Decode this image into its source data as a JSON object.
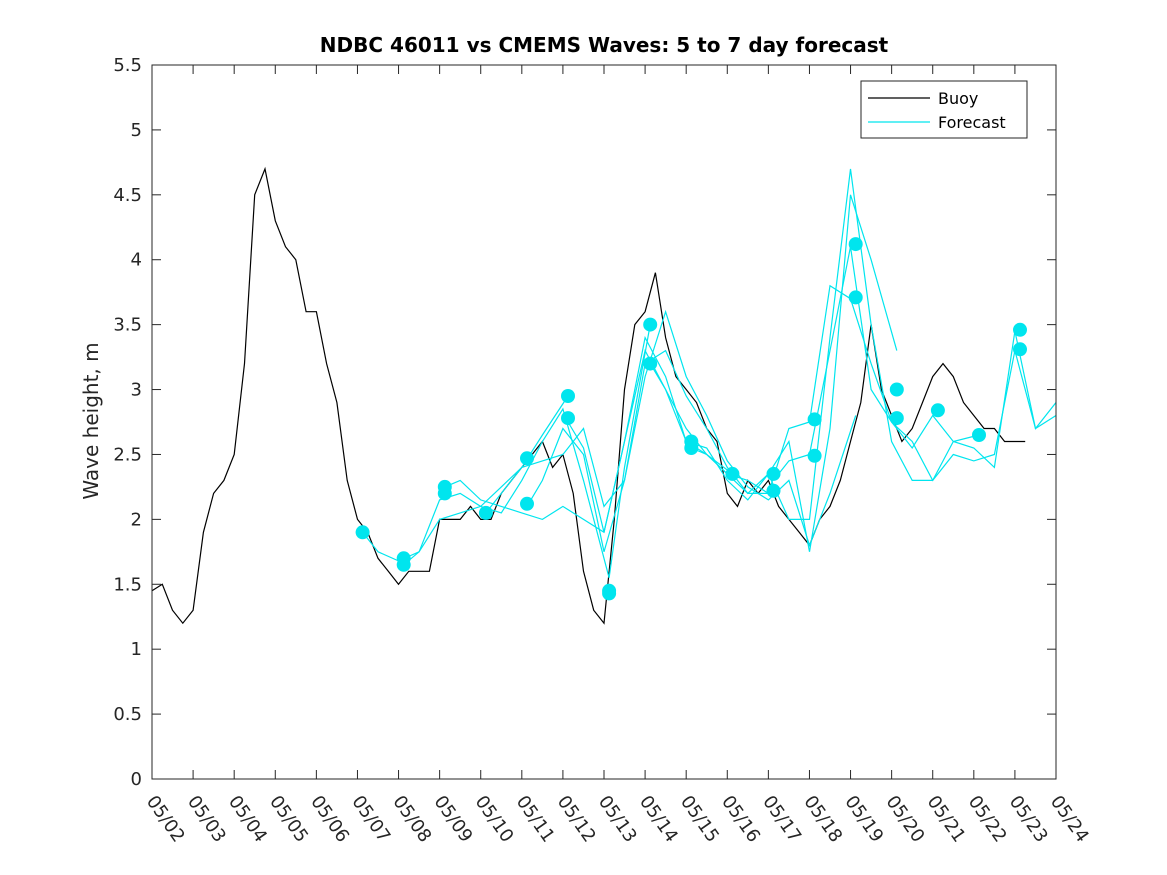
{
  "chart_data": {
    "type": "line",
    "title": "NDBC 46011 vs CMEMS Waves: 5 to 7 day forecast",
    "xlabel": "",
    "ylabel": "Wave height, m",
    "ylim": [
      0,
      5.5
    ],
    "yticks": [
      0,
      0.5,
      1,
      1.5,
      2,
      2.5,
      3,
      3.5,
      4,
      4.5,
      5,
      5.5
    ],
    "ytick_labels": [
      "0",
      "0.5",
      "1",
      "1.5",
      "2",
      "2.5",
      "3",
      "3.5",
      "4",
      "4.5",
      "5",
      "5.5"
    ],
    "xlim": [
      "05/02",
      "05/24"
    ],
    "xtick_labels": [
      "05/02",
      "05/03",
      "05/04",
      "05/05",
      "05/06",
      "05/07",
      "05/08",
      "05/09",
      "05/10",
      "05/11",
      "05/12",
      "05/13",
      "05/14",
      "05/15",
      "05/16",
      "05/17",
      "05/18",
      "05/19",
      "05/20",
      "05/21",
      "05/22",
      "05/23",
      "05/24"
    ],
    "grid": false,
    "legend": {
      "placement": "top-right",
      "entries": [
        "Buoy",
        "Forecast"
      ]
    },
    "colors": {
      "buoy": "#000000",
      "forecast": "#00E5EE",
      "axis": "#262626"
    },
    "series": [
      {
        "name": "Buoy",
        "x": [
          "05/02",
          "05/02 06h",
          "05/02 12h",
          "05/02 18h",
          "05/03",
          "05/03 06h",
          "05/03 12h",
          "05/03 18h",
          "05/04",
          "05/04 06h",
          "05/04 12h",
          "05/04 18h",
          "05/05",
          "05/05 06h",
          "05/05 12h",
          "05/05 18h",
          "05/06",
          "05/06 06h",
          "05/06 12h",
          "05/06 18h",
          "05/07",
          "05/07 06h",
          "05/07 12h",
          "05/07 18h",
          "05/08",
          "05/08 06h",
          "05/08 12h",
          "05/08 18h",
          "05/09",
          "05/09 06h",
          "05/09 12h",
          "05/09 18h",
          "05/10",
          "05/10 06h",
          "05/10 12h",
          "05/10 18h",
          "05/11",
          "05/11 06h",
          "05/11 12h",
          "05/11 18h",
          "05/12",
          "05/12 06h",
          "05/12 12h",
          "05/12 18h",
          "05/13",
          "05/13 06h",
          "05/13 12h",
          "05/13 18h",
          "05/14",
          "05/14 06h",
          "05/14 12h",
          "05/14 18h",
          "05/15",
          "05/15 06h",
          "05/15 12h",
          "05/15 18h",
          "05/16",
          "05/16 06h",
          "05/16 12h",
          "05/16 18h",
          "05/17",
          "05/17 06h",
          "05/17 12h",
          "05/17 18h",
          "05/18",
          "05/18 06h",
          "05/18 12h",
          "05/18 18h",
          "05/19",
          "05/19 06h",
          "05/19 12h",
          "05/19 18h",
          "05/20",
          "05/20 06h",
          "05/20 12h",
          "05/20 18h",
          "05/21",
          "05/21 06h",
          "05/21 12h",
          "05/21 18h",
          "05/22",
          "05/22 06h",
          "05/22 12h",
          "05/22 18h",
          "05/23",
          "05/23 06h"
        ],
        "y": [
          1.45,
          1.5,
          1.3,
          1.2,
          1.3,
          1.9,
          2.2,
          2.3,
          2.5,
          3.2,
          4.5,
          4.7,
          4.3,
          4.1,
          4.0,
          3.6,
          3.6,
          3.2,
          2.9,
          2.3,
          2.0,
          1.9,
          1.7,
          1.6,
          1.5,
          1.6,
          1.6,
          1.6,
          2.0,
          2.0,
          2.0,
          2.1,
          2.0,
          2.0,
          2.2,
          2.3,
          2.4,
          2.5,
          2.6,
          2.4,
          2.5,
          2.2,
          1.6,
          1.3,
          1.2,
          2.0,
          3.0,
          3.5,
          3.6,
          3.9,
          3.4,
          3.1,
          3.0,
          2.9,
          2.7,
          2.6,
          2.2,
          2.1,
          2.3,
          2.2,
          2.3,
          2.1,
          2.0,
          1.9,
          1.8,
          2.0,
          2.1,
          2.3,
          2.6,
          2.9,
          3.5,
          3.0,
          2.8,
          2.6,
          2.7,
          2.9,
          3.1,
          3.2,
          3.1,
          2.9,
          2.8,
          2.7,
          2.7,
          2.6,
          2.6,
          2.6
        ]
      },
      {
        "name": "Forecast",
        "segments": [
          {
            "x": [
              "05/07 03h",
              "05/07 12h",
              "05/08",
              "05/08 12h",
              "05/09",
              "05/09 12h",
              "05/10",
              "05/10 12h",
              "05/11",
              "05/11 12h",
              "05/12 03h"
            ],
            "y": [
              1.9,
              1.75,
              1.68,
              1.75,
              2.0,
              2.05,
              2.1,
              2.25,
              2.4,
              2.65,
              2.95
            ]
          },
          {
            "x": [
              "05/08 03h",
              "05/08 12h",
              "05/09",
              "05/09 12h",
              "05/10",
              "05/10 12h",
              "05/11",
              "05/11 12h",
              "05/12",
              "05/12 12h",
              "05/13 03h",
              "05/13 12h",
              "05/14 03h"
            ],
            "y": [
              1.65,
              1.75,
              2.15,
              2.2,
              2.1,
              2.05,
              2.3,
              2.6,
              2.85,
              2.3,
              1.55,
              2.4,
              3.5
            ]
          },
          {
            "x": [
              "05/09 03h",
              "05/09 12h",
              "05/10",
              "05/10 12h",
              "05/11",
              "05/11 12h",
              "05/12",
              "05/12 12h",
              "05/13",
              "05/13 12h",
              "05/14",
              "05/14 12h",
              "05/15",
              "05/15 12h",
              "05/16 03h"
            ],
            "y": [
              2.25,
              2.3,
              2.15,
              2.1,
              2.05,
              2.0,
              2.1,
              2.0,
              1.9,
              2.6,
              3.3,
              3.0,
              2.7,
              2.5,
              2.35
            ]
          },
          {
            "x": [
              "05/10 03h",
              "05/10 12h",
              "05/11",
              "05/11 12h",
              "05/12",
              "05/12 12h",
              "05/13",
              "05/13 12h",
              "05/14",
              "05/14 12h",
              "05/15",
              "05/15 12h",
              "05/16",
              "05/16 12h",
              "05/17 03h"
            ],
            "y": [
              2.05,
              2.2,
              2.4,
              2.45,
              2.5,
              2.7,
              2.1,
              2.3,
              3.2,
              3.3,
              2.95,
              2.7,
              2.4,
              2.2,
              2.2
            ]
          },
          {
            "x": [
              "05/11 03h",
              "05/11 12h",
              "05/12",
              "05/12 12h",
              "05/13",
              "05/13 12h",
              "05/14",
              "05/14 12h",
              "05/15",
              "05/15 12h",
              "05/16",
              "05/16 12h",
              "05/17",
              "05/17 12h",
              "05/18",
              "05/18 12h",
              "05/19 03h"
            ],
            "y": [
              2.1,
              2.3,
              2.7,
              2.5,
              1.75,
              2.3,
              3.1,
              3.6,
              3.1,
              2.8,
              2.45,
              2.25,
              2.15,
              2.3,
              1.8,
              2.2,
              2.8
            ]
          },
          {
            "x": [
              "05/12 03h",
              "05/12 12h",
              "05/13",
              "05/13 12h",
              "05/14",
              "05/14 12h",
              "05/15",
              "05/15 12h",
              "05/16",
              "05/16 12h",
              "05/17",
              "05/17 12h",
              "05/18",
              "05/18 12h",
              "05/19",
              "05/19 12h",
              "05/20 03h"
            ],
            "y": [
              2.75,
              2.55,
              1.9,
              2.6,
              3.4,
              3.1,
              2.6,
              2.55,
              2.3,
              2.15,
              2.35,
              2.6,
              1.75,
              2.7,
              4.5,
              4.0,
              3.3
            ]
          },
          {
            "x": [
              "05/14 03h",
              "05/14 12h",
              "05/15",
              "05/15 12h",
              "05/16",
              "05/16 12h",
              "05/17",
              "05/17 12h",
              "05/18",
              "05/18 12h",
              "05/19",
              "05/19 12h",
              "05/20",
              "05/20 12h",
              "05/21",
              "05/21 12h",
              "05/22 03h"
            ],
            "y": [
              3.2,
              3.0,
              2.6,
              2.5,
              2.35,
              2.2,
              2.35,
              2.0,
              2.0,
              3.4,
              4.7,
              3.5,
              2.6,
              2.3,
              2.3,
              2.6,
              2.65
            ]
          },
          {
            "x": [
              "05/15 03h",
              "05/15 12h",
              "05/16",
              "05/16 12h",
              "05/17",
              "05/17 12h",
              "05/18",
              "05/18 12h",
              "05/19",
              "05/19 12h",
              "05/20",
              "05/20 12h",
              "05/21",
              "05/21 12h",
              "05/22",
              "05/22 12h",
              "05/23",
              "05/23 12h",
              "05/24"
            ],
            "y": [
              2.55,
              2.5,
              2.35,
              2.3,
              2.2,
              2.7,
              2.75,
              3.8,
              3.7,
              3.2,
              2.75,
              2.6,
              2.3,
              2.5,
              2.45,
              2.5,
              3.3,
              2.7,
              2.9
            ]
          },
          {
            "x": [
              "05/17 03h",
              "05/17 12h",
              "05/18",
              "05/18 12h",
              "05/19",
              "05/19 12h",
              "05/20",
              "05/20 12h",
              "05/21",
              "05/21 12h",
              "05/22",
              "05/22 12h",
              "05/23",
              "05/23 12h",
              "05/24"
            ],
            "y": [
              2.3,
              2.45,
              2.5,
              3.3,
              4.1,
              3.0,
              2.75,
              2.55,
              2.8,
              2.6,
              2.55,
              2.4,
              3.45,
              2.7,
              2.8
            ]
          }
        ],
        "markers": {
          "x": [
            "05/07 03h",
            "05/08 03h",
            "05/08 03h",
            "05/09 03h",
            "05/09 03h",
            "05/10 03h",
            "05/11 03h",
            "05/11 03h",
            "05/12 03h",
            "05/12 03h",
            "05/13 03h",
            "05/13 03h",
            "05/14 03h",
            "05/14 03h",
            "05/15 03h",
            "05/15 03h",
            "05/16 03h",
            "05/17 03h",
            "05/17 03h",
            "05/18 03h",
            "05/18 03h",
            "05/19 03h",
            "05/19 03h",
            "05/20 03h",
            "05/20 03h",
            "05/21 03h",
            "05/22 03h",
            "05/23 03h",
            "05/23 03h"
          ],
          "y": [
            1.9,
            1.7,
            1.65,
            2.25,
            2.2,
            2.05,
            2.47,
            2.12,
            2.95,
            2.78,
            1.45,
            1.43,
            3.5,
            3.2,
            2.6,
            2.55,
            2.35,
            2.35,
            2.22,
            2.77,
            2.49,
            4.12,
            3.71,
            3.0,
            2.78,
            2.84,
            2.65,
            3.46,
            3.31
          ]
        }
      }
    ]
  }
}
